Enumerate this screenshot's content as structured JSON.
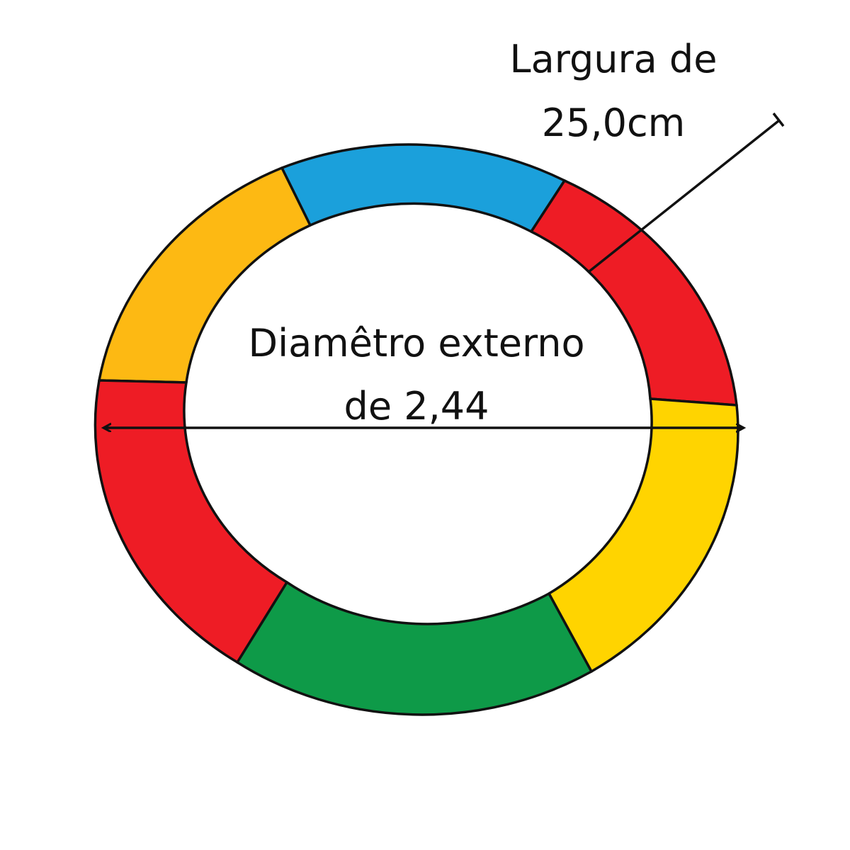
{
  "labels": {
    "width_line1": "Largura de",
    "width_line2": "25,0cm",
    "diameter_line1": "Diamêtro externo",
    "diameter_line2": "de 2,44"
  },
  "ring_segments": [
    {
      "name": "orange",
      "color": "#FDB913"
    },
    {
      "name": "blue",
      "color": "#1BA0DB"
    },
    {
      "name": "red-top",
      "color": "#EE1C25"
    },
    {
      "name": "yellow",
      "color": "#FFD400"
    },
    {
      "name": "green",
      "color": "#0E9A48"
    },
    {
      "name": "red-left",
      "color": "#EE1C25"
    }
  ],
  "colors": {
    "outline": "#111111",
    "text": "#111111"
  }
}
